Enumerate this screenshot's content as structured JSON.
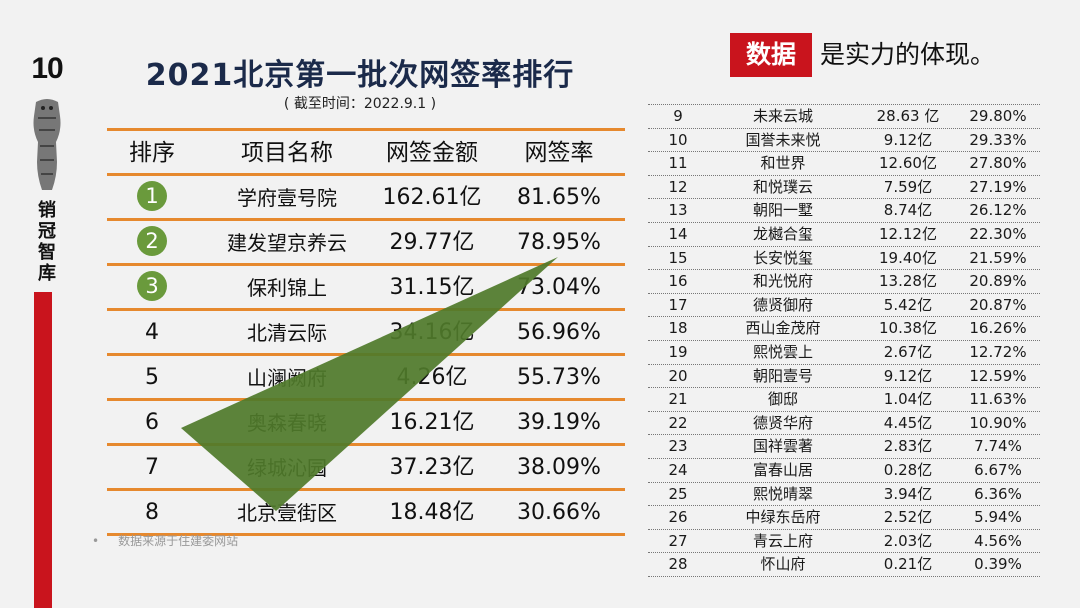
{
  "sidebar": {
    "page_number": "10",
    "brand": "销冠智库"
  },
  "header": {
    "title": "2021北京第一批次网签率排行",
    "subtitle": "( 截至时间：2022.9.1 )"
  },
  "tagline": {
    "badge": "数据",
    "text": "是实力的体现。"
  },
  "left_table": {
    "headers": {
      "rank": "排序",
      "name": "项目名称",
      "amount": "网签金额",
      "rate": "网签率"
    },
    "rows": [
      {
        "rank": "1",
        "name": "学府壹号院",
        "amount": "162.61亿",
        "rate": "81.65%"
      },
      {
        "rank": "2",
        "name": "建发望京养云",
        "amount": "29.77亿",
        "rate": "78.95%"
      },
      {
        "rank": "3",
        "name": "保利锦上",
        "amount": "31.15亿",
        "rate": "73.04%"
      },
      {
        "rank": "4",
        "name": "北清云际",
        "amount": "34.16亿",
        "rate": "56.96%"
      },
      {
        "rank": "5",
        "name": "山澜阙府",
        "amount": "4.26亿",
        "rate": "55.73%"
      },
      {
        "rank": "6",
        "name": "奥森春晓",
        "amount": "16.21亿",
        "rate": "39.19%"
      },
      {
        "rank": "7",
        "name": "绿城沁园",
        "amount": "37.23亿",
        "rate": "38.09%"
      },
      {
        "rank": "8",
        "name": "北京壹街区",
        "amount": "18.48亿",
        "rate": "30.66%"
      }
    ]
  },
  "right_table": {
    "rows": [
      {
        "rank": "9",
        "name": "未来云城",
        "amount": "28.63 亿",
        "rate": "29.80%"
      },
      {
        "rank": "10",
        "name": "国誉未来悦",
        "amount": "9.12亿",
        "rate": "29.33%"
      },
      {
        "rank": "11",
        "name": "和世界",
        "amount": "12.60亿",
        "rate": "27.80%"
      },
      {
        "rank": "12",
        "name": "和悦璞云",
        "amount": "7.59亿",
        "rate": "27.19%"
      },
      {
        "rank": "13",
        "name": "朝阳一墅",
        "amount": "8.74亿",
        "rate": "26.12%"
      },
      {
        "rank": "14",
        "name": "龙樾合玺",
        "amount": "12.12亿",
        "rate": "22.30%"
      },
      {
        "rank": "15",
        "name": "长安悦玺",
        "amount": "19.40亿",
        "rate": "21.59%"
      },
      {
        "rank": "16",
        "name": "和光悦府",
        "amount": "13.28亿",
        "rate": "20.89%"
      },
      {
        "rank": "17",
        "name": "德贤御府",
        "amount": "5.42亿",
        "rate": "20.87%"
      },
      {
        "rank": "18",
        "name": "西山金茂府",
        "amount": "10.38亿",
        "rate": "16.26%"
      },
      {
        "rank": "19",
        "name": "熙悦雲上",
        "amount": "2.67亿",
        "rate": "12.72%"
      },
      {
        "rank": "20",
        "name": "朝阳壹号",
        "amount": "9.12亿",
        "rate": "12.59%"
      },
      {
        "rank": "21",
        "name": "御邸",
        "amount": "1.04亿",
        "rate": "11.63%"
      },
      {
        "rank": "22",
        "name": "德贤华府",
        "amount": "4.45亿",
        "rate": "10.90%"
      },
      {
        "rank": "23",
        "name": "国祥雲著",
        "amount": "2.83亿",
        "rate": "7.74%"
      },
      {
        "rank": "24",
        "name": "富春山居",
        "amount": "0.28亿",
        "rate": "6.67%"
      },
      {
        "rank": "25",
        "name": "熙悦晴翠",
        "amount": "3.94亿",
        "rate": "6.36%"
      },
      {
        "rank": "26",
        "name": "中绿东岳府",
        "amount": "2.52亿",
        "rate": "5.94%"
      },
      {
        "rank": "27",
        "name": "青云上府",
        "amount": "2.03亿",
        "rate": "4.56%"
      },
      {
        "rank": "28",
        "name": "怀山府",
        "amount": "0.21亿",
        "rate": "0.39%"
      }
    ]
  },
  "footer": {
    "source": "数据来源于住建委网站"
  },
  "colors": {
    "accent_red": "#c9141d",
    "rule_orange": "#e6892e",
    "badge_green": "#6a9a3c",
    "wedge_green": "#4f7a2a",
    "title_navy": "#1b2a4a"
  },
  "icons": {
    "mascot": "tiger-figure-icon",
    "wedge": "green-wedge-arrow-icon"
  }
}
